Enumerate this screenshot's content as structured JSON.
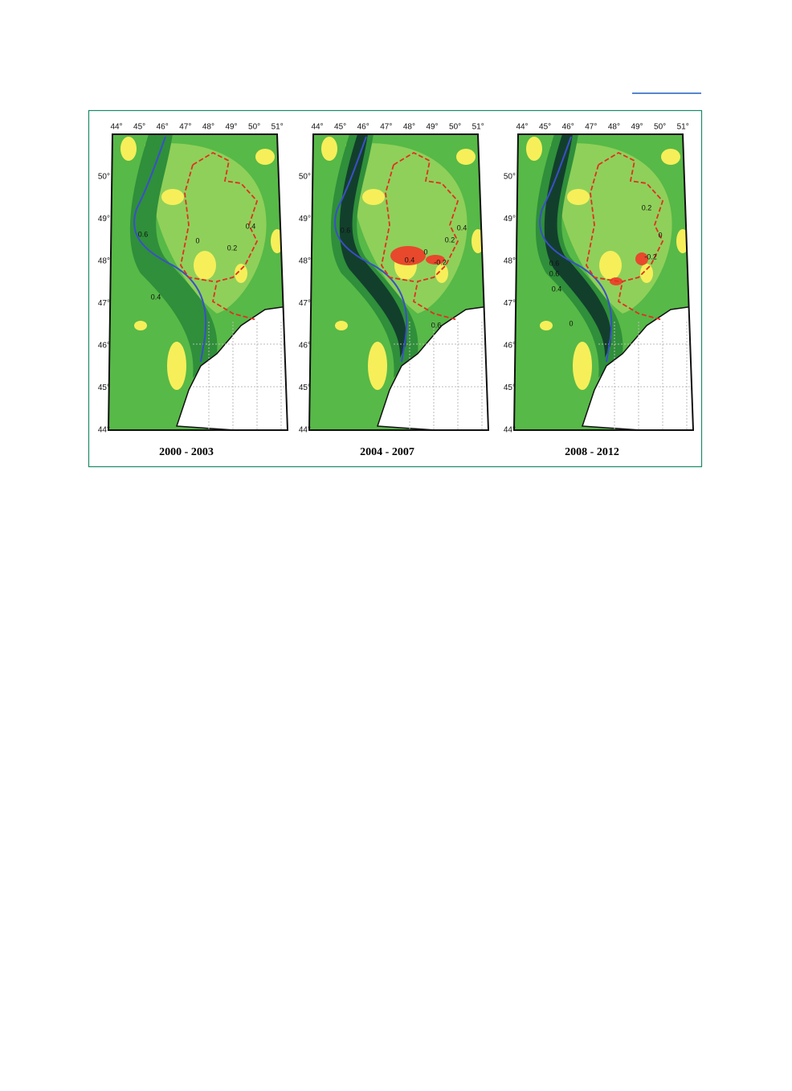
{
  "figure": {
    "panels": [
      {
        "title": "2000 - 2003",
        "x_ticks": [
          "44°",
          "45°",
          "46°",
          "47°",
          "48°",
          "49°",
          "50°",
          "51°"
        ],
        "y_ticks": [
          "50°",
          "49°",
          "48°",
          "47°",
          "46°",
          "45°",
          "44°"
        ],
        "contour_labels": [
          "0.6",
          "0",
          "0.2",
          "0.4",
          "0.4"
        ]
      },
      {
        "title": "2004 - 2007",
        "x_ticks": [
          "44°",
          "45°",
          "46°",
          "47°",
          "48°",
          "49°",
          "50°",
          "51°"
        ],
        "y_ticks": [
          "50°",
          "49°",
          "48°",
          "47°",
          "46°",
          "45°",
          "44°"
        ],
        "contour_labels": [
          "0.6",
          "0.4",
          "0.2",
          "0",
          "0.4",
          "-0.2",
          "0.6"
        ]
      },
      {
        "title": "2008 - 2012",
        "x_ticks": [
          "44°",
          "45°",
          "46°",
          "47°",
          "48°",
          "49°",
          "50°",
          "51°"
        ],
        "y_ticks": [
          "50°",
          "49°",
          "48°",
          "47°",
          "46°",
          "45°",
          "44°"
        ],
        "contour_labels": [
          "0.2",
          "0",
          "-0.2",
          "0.6",
          "0.6",
          "0.4",
          "0"
        ]
      }
    ]
  }
}
